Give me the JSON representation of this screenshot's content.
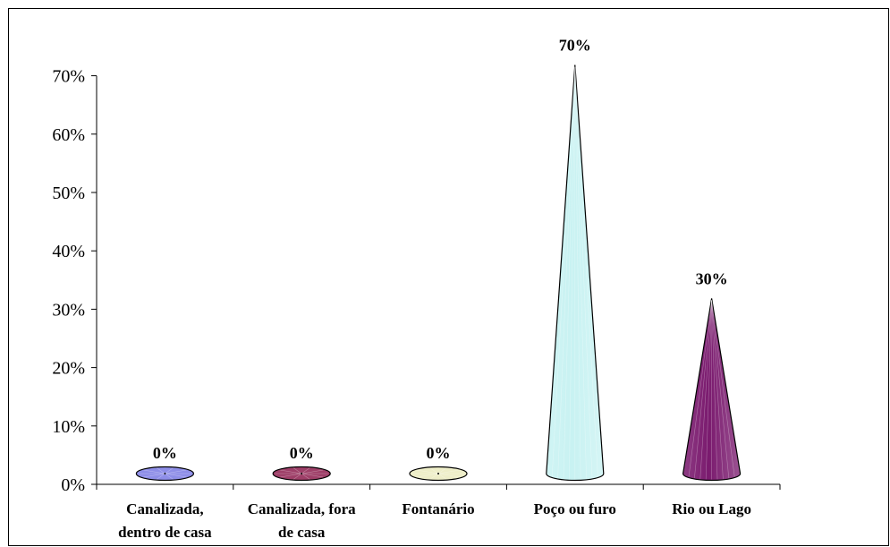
{
  "chart_data": {
    "type": "bar",
    "mark_shape": "cone",
    "title": "",
    "xlabel": "",
    "ylabel": "",
    "ylim": [
      0,
      0.7
    ],
    "yticks": [
      0,
      0.1,
      0.2,
      0.3,
      0.4,
      0.5,
      0.6,
      0.7
    ],
    "ytick_labels": [
      "0%",
      "10%",
      "20%",
      "30%",
      "40%",
      "50%",
      "60%",
      "70%"
    ],
    "grid": false,
    "legend": "none",
    "categories": [
      [
        "Canalizada,",
        "dentro de casa"
      ],
      [
        "Canalizada, fora",
        "de casa"
      ],
      [
        "Fontanário"
      ],
      [
        "Poço ou furo"
      ],
      [
        "Rio ou Lago"
      ]
    ],
    "values": [
      0,
      0,
      0,
      0.7,
      0.3
    ],
    "data_labels": [
      "0%",
      "0%",
      "0%",
      "70%",
      "30%"
    ],
    "colors": [
      "#8e8ee8",
      "#9e3f68",
      "#eeeec8",
      "#c8f2f2",
      "#7a1a6e"
    ]
  }
}
